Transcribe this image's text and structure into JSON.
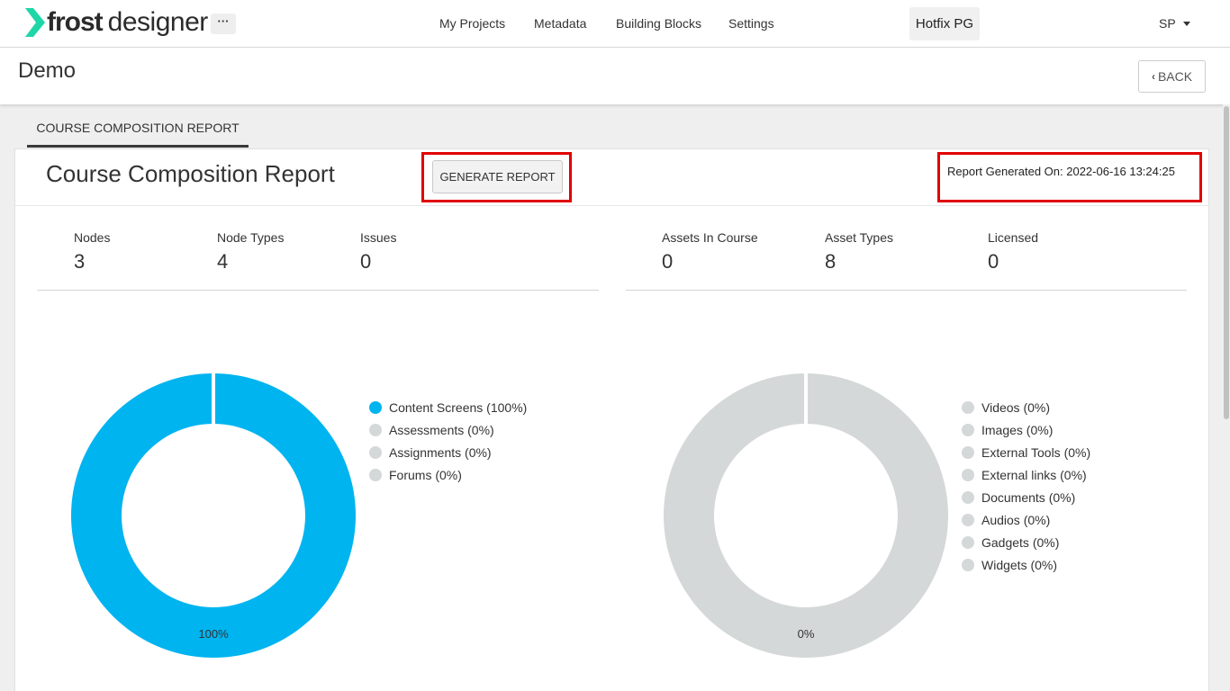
{
  "brand": {
    "word1": "frost",
    "word2": "designer",
    "accent": "#1fd6a8"
  },
  "header": {
    "more_label": "···",
    "nav": [
      "My Projects",
      "Metadata",
      "Building Blocks",
      "Settings"
    ],
    "project": "Hotfix PG",
    "user": "SP"
  },
  "page": {
    "title": "Demo",
    "back_label": "BACK"
  },
  "tabs": [
    {
      "label": "COURSE COMPOSITION REPORT",
      "active": true
    }
  ],
  "report": {
    "title": "Course Composition Report",
    "generate_label": "GENERATE REPORT",
    "generated_on": "Report Generated On: 2022-06-16 13:24:25",
    "highlight_color": "#e00000"
  },
  "stats_left": [
    {
      "label": "Nodes",
      "value": "3"
    },
    {
      "label": "Node Types",
      "value": "4"
    },
    {
      "label": "Issues",
      "value": "0"
    }
  ],
  "stats_right": [
    {
      "label": "Assets In Course",
      "value": "0"
    },
    {
      "label": "Asset Types",
      "value": "8"
    },
    {
      "label": "Licensed",
      "value": "0"
    }
  ],
  "chart_data": [
    {
      "type": "pie",
      "variant": "donut",
      "center_label": "100%",
      "categories": [
        "Content Screens (100%)",
        "Assessments (0%)",
        "Assignments (0%)",
        "Forums (0%)"
      ],
      "values": [
        100,
        0,
        0,
        0
      ],
      "colors": [
        "#00b4f0",
        "#d5d8d8",
        "#d5d8d8",
        "#d5d8d8"
      ],
      "legend": "right"
    },
    {
      "type": "pie",
      "variant": "donut",
      "center_label": "0%",
      "categories": [
        "Videos (0%)",
        "Images (0%)",
        "External Tools (0%)",
        "External links (0%)",
        "Documents (0%)",
        "Audios (0%)",
        "Gadgets (0%)",
        "Widgets (0%)"
      ],
      "values": [
        0,
        0,
        0,
        0,
        0,
        0,
        0,
        0
      ],
      "colors": [
        "#d5d8d8",
        "#d5d8d8",
        "#d5d8d8",
        "#d5d8d8",
        "#d5d8d8",
        "#d5d8d8",
        "#d5d8d8",
        "#d5d8d8"
      ],
      "empty_color": "#d5d8d8",
      "legend": "right"
    }
  ]
}
